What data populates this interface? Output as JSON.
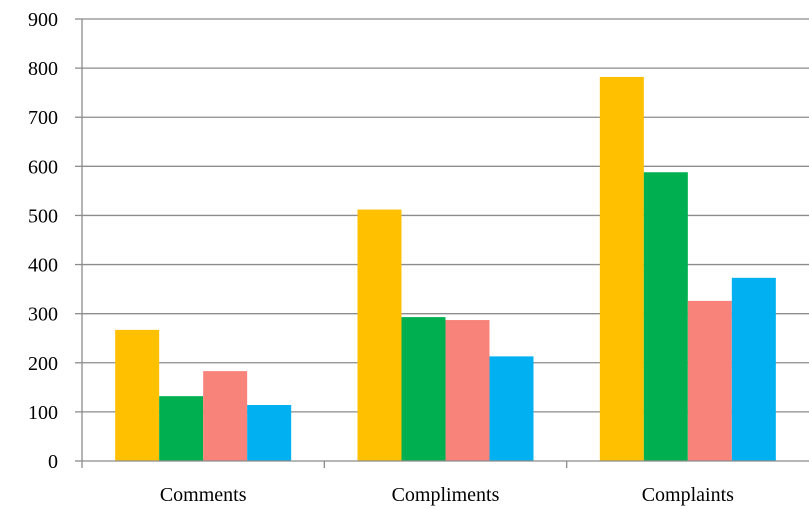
{
  "chart_data": {
    "type": "bar",
    "title": "",
    "xlabel": "",
    "ylabel": "",
    "categories": [
      "Comments",
      "Compliments",
      "Complaints"
    ],
    "series": [
      {
        "values": [
          267,
          512,
          782
        ],
        "color": "#FFC000"
      },
      {
        "values": [
          132,
          293,
          588
        ],
        "color": "#00B050"
      },
      {
        "values": [
          183,
          287,
          326
        ],
        "color": "#F8837A"
      },
      {
        "values": [
          114,
          213,
          373
        ],
        "color": "#00B0F0"
      }
    ],
    "ylim": [
      0,
      900
    ],
    "yticks": [
      0,
      100,
      200,
      300,
      400,
      500,
      600,
      700,
      800,
      900
    ],
    "grid": true,
    "legend": "none"
  }
}
